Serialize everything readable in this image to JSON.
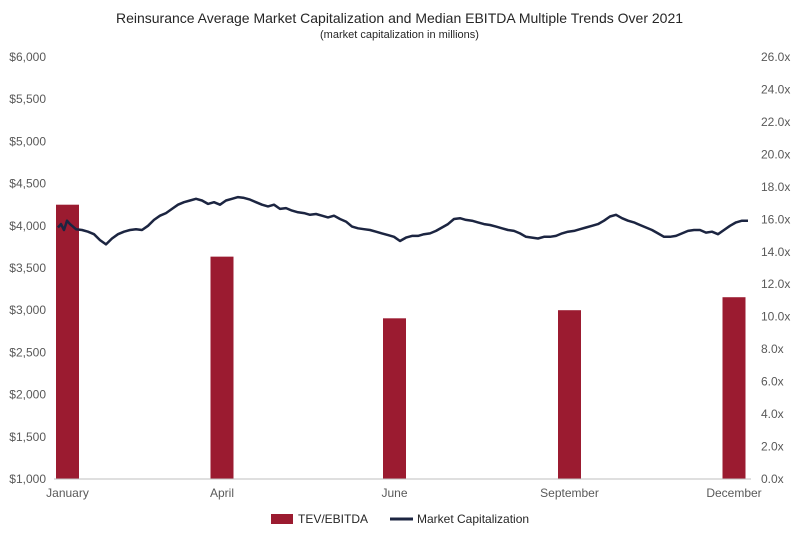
{
  "chart_data": {
    "type": "bar+line",
    "title": "Reinsurance Average Market Capitalization and Median EBITDA Multiple Trends Over 2021",
    "subtitle": "(market capitalization in millions)",
    "categories": [
      "January",
      "April",
      "June",
      "September",
      "December"
    ],
    "y_left": {
      "ylim": [
        1000,
        6000
      ],
      "tick_labels": [
        "$1,000",
        "$1,500",
        "$2,000",
        "$2,500",
        "$3,000",
        "$3,500",
        "$4,000",
        "$4,500",
        "$5,000",
        "$5,500",
        "$6,000"
      ]
    },
    "y_right": {
      "ylim": [
        0,
        26
      ],
      "tick_labels": [
        "0.0x",
        "2.0x",
        "4.0x",
        "6.0x",
        "8.0x",
        "10.0x",
        "12.0x",
        "14.0x",
        "16.0x",
        "18.0x",
        "20.0x",
        "22.0x",
        "24.0x",
        "26.0x"
      ]
    },
    "series": [
      {
        "name": "TEV/EBITDA",
        "type": "bar",
        "axis": "right",
        "color": "#9b1b30",
        "values": [
          16.9,
          13.7,
          9.9,
          10.4,
          11.2
        ]
      },
      {
        "name": "Market Capitalization",
        "type": "line",
        "axis": "left",
        "color": "#1c2541",
        "points": [
          [
            0.0,
            3980
          ],
          [
            0.5,
            4020
          ],
          [
            1,
            3950
          ],
          [
            1.5,
            4060
          ],
          [
            2,
            4020
          ],
          [
            3,
            3960
          ],
          [
            4,
            3950
          ],
          [
            5,
            3930
          ],
          [
            6,
            3900
          ],
          [
            7,
            3830
          ],
          [
            8,
            3780
          ],
          [
            9,
            3850
          ],
          [
            10,
            3900
          ],
          [
            11,
            3930
          ],
          [
            12,
            3950
          ],
          [
            13,
            3960
          ],
          [
            14,
            3950
          ],
          [
            15,
            4000
          ],
          [
            16,
            4070
          ],
          [
            17,
            4120
          ],
          [
            18,
            4150
          ],
          [
            19,
            4200
          ],
          [
            20,
            4250
          ],
          [
            21,
            4280
          ],
          [
            22,
            4300
          ],
          [
            23,
            4320
          ],
          [
            24,
            4300
          ],
          [
            25,
            4260
          ],
          [
            26,
            4280
          ],
          [
            27,
            4250
          ],
          [
            28,
            4300
          ],
          [
            29,
            4320
          ],
          [
            30,
            4340
          ],
          [
            31,
            4330
          ],
          [
            32,
            4310
          ],
          [
            33,
            4280
          ],
          [
            34,
            4250
          ],
          [
            35,
            4230
          ],
          [
            36,
            4250
          ],
          [
            37,
            4200
          ],
          [
            38,
            4210
          ],
          [
            39,
            4180
          ],
          [
            40,
            4160
          ],
          [
            41,
            4150
          ],
          [
            42,
            4130
          ],
          [
            43,
            4140
          ],
          [
            44,
            4120
          ],
          [
            45,
            4100
          ],
          [
            46,
            4120
          ],
          [
            47,
            4080
          ],
          [
            48,
            4050
          ],
          [
            49,
            3990
          ],
          [
            50,
            3970
          ],
          [
            51,
            3960
          ],
          [
            52,
            3950
          ],
          [
            53,
            3930
          ],
          [
            54,
            3910
          ],
          [
            55,
            3890
          ],
          [
            56,
            3870
          ],
          [
            57,
            3820
          ],
          [
            58,
            3860
          ],
          [
            59,
            3880
          ],
          [
            60,
            3880
          ],
          [
            61,
            3900
          ],
          [
            62,
            3910
          ],
          [
            63,
            3940
          ],
          [
            64,
            3980
          ],
          [
            65,
            4020
          ],
          [
            66,
            4080
          ],
          [
            67,
            4090
          ],
          [
            68,
            4070
          ],
          [
            69,
            4060
          ],
          [
            70,
            4040
          ],
          [
            71,
            4020
          ],
          [
            72,
            4010
          ],
          [
            73,
            3990
          ],
          [
            74,
            3970
          ],
          [
            75,
            3950
          ],
          [
            76,
            3940
          ],
          [
            77,
            3910
          ],
          [
            78,
            3870
          ],
          [
            79,
            3860
          ],
          [
            80,
            3850
          ],
          [
            81,
            3870
          ],
          [
            82,
            3870
          ],
          [
            83,
            3880
          ],
          [
            84,
            3910
          ],
          [
            85,
            3930
          ],
          [
            86,
            3940
          ],
          [
            87,
            3960
          ],
          [
            88,
            3980
          ],
          [
            89,
            4000
          ],
          [
            90,
            4020
          ],
          [
            91,
            4060
          ],
          [
            92,
            4110
          ],
          [
            93,
            4130
          ],
          [
            94,
            4090
          ],
          [
            95,
            4060
          ],
          [
            96,
            4040
          ],
          [
            97,
            4010
          ],
          [
            98,
            3980
          ],
          [
            99,
            3950
          ],
          [
            100,
            3910
          ],
          [
            101,
            3870
          ],
          [
            102,
            3870
          ],
          [
            103,
            3880
          ],
          [
            104,
            3910
          ],
          [
            105,
            3940
          ],
          [
            106,
            3950
          ],
          [
            107,
            3950
          ],
          [
            108,
            3920
          ],
          [
            109,
            3930
          ],
          [
            110,
            3900
          ],
          [
            111,
            3950
          ],
          [
            112,
            4000
          ],
          [
            113,
            4040
          ],
          [
            114,
            4060
          ],
          [
            115,
            4060
          ]
        ]
      }
    ],
    "legend_position": "bottom",
    "grid": false
  }
}
